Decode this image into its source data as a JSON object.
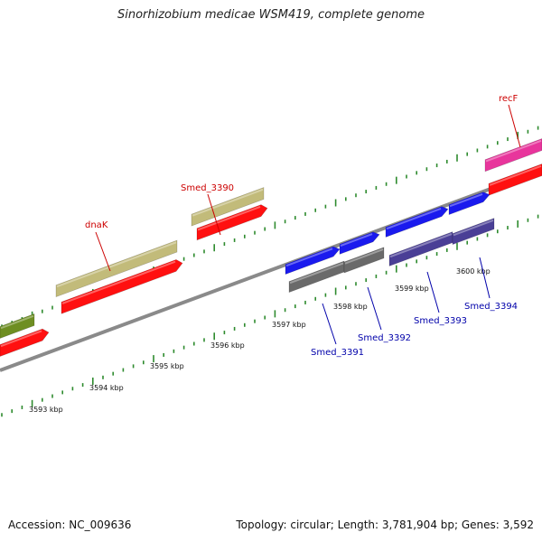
{
  "header": {
    "title": "Sinorhizobium medicae WSM419, complete genome"
  },
  "footer": {
    "accession": "Accession: NC_009636",
    "summary": "Topology: circular; Length: 3,781,904 bp; Genes: 3,592"
  },
  "colors": {
    "backbone": "#8a8a8a",
    "tick": "#2e8b2e",
    "gene_label_red": "#cc0000",
    "gene_label_blue": "#0000aa",
    "cds_red": "#ff1010",
    "forward_khaki": "#c2bb7a",
    "forward_olive": "#6e8e22",
    "forward_magenta": "#e8359c",
    "blue_gene": "#1a1aee",
    "grey_gene": "#6a6a6a",
    "purple_gene": "#4a3f96"
  },
  "scale": {
    "kbp_labels": [
      {
        "kbp": 3593,
        "text": "3593 kbp"
      },
      {
        "kbp": 3594,
        "text": "3594 kbp"
      },
      {
        "kbp": 3595,
        "text": "3595 kbp"
      },
      {
        "kbp": 3596,
        "text": "3596 kbp"
      },
      {
        "kbp": 3597,
        "text": "3597 kbp"
      },
      {
        "kbp": 3598,
        "text": "3598 kbp"
      },
      {
        "kbp": 3599,
        "text": "3599 kbp"
      },
      {
        "kbp": 3600,
        "text": "3600 kbp"
      }
    ]
  },
  "genes": [
    {
      "name": "dnaK",
      "label_color": "gene_label_red"
    },
    {
      "name": "Smed_3390",
      "label_color": "gene_label_red"
    },
    {
      "name": "recF",
      "label_color": "gene_label_red"
    },
    {
      "name": "Smed_3391",
      "label_color": "gene_label_blue"
    },
    {
      "name": "Smed_3392",
      "label_color": "gene_label_blue"
    },
    {
      "name": "Smed_3393",
      "label_color": "gene_label_blue"
    },
    {
      "name": "Smed_3394",
      "label_color": "gene_label_blue"
    }
  ]
}
